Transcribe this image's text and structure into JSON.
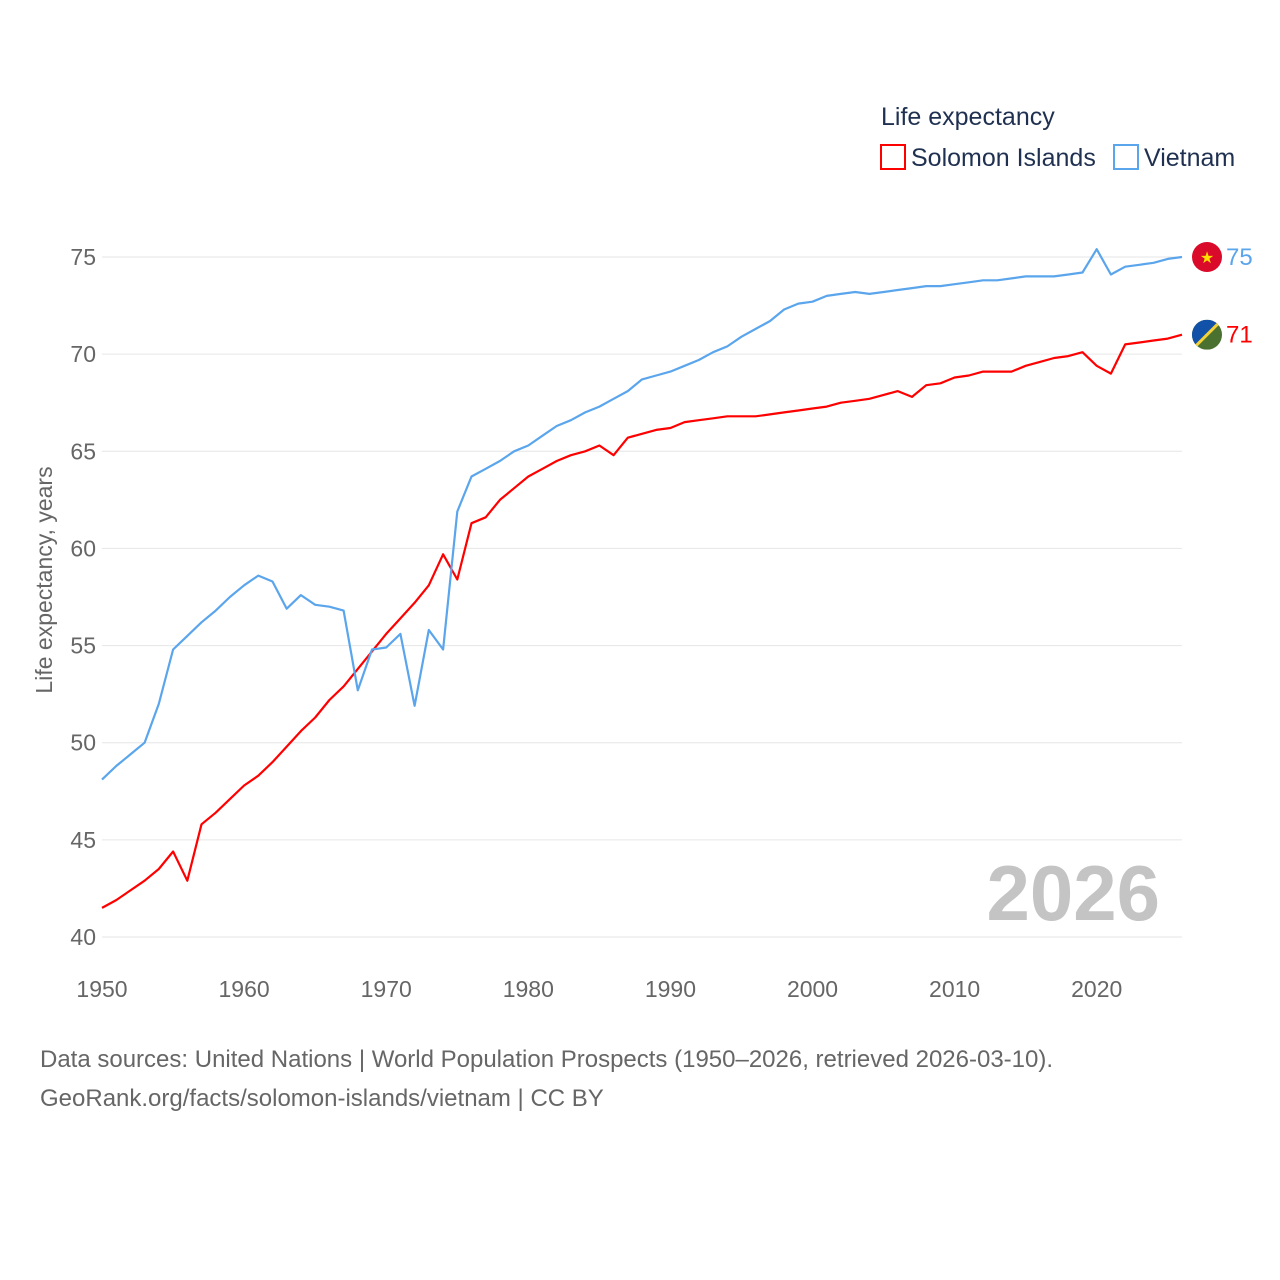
{
  "legend": {
    "title": "Life expectancy",
    "items": [
      {
        "name": "Solomon Islands",
        "color": "#ff0000"
      },
      {
        "name": "Vietnam",
        "color": "#5aa5ec"
      }
    ]
  },
  "year_watermark": "2026",
  "sources": {
    "line1": "Data sources: United Nations | World Population Prospects (1950–2026, retrieved 2026-03-10).",
    "line2": "GeoRank.org/facts/solomon-islands/vietnam | CC BY"
  },
  "chart_data": {
    "type": "line",
    "title": "Life expectancy",
    "xlabel": "",
    "ylabel": "Life expectancy, years",
    "xlim": [
      1950,
      2026
    ],
    "ylim": [
      40,
      77
    ],
    "grid": true,
    "legend_placement": "top-right",
    "xticks": [
      1950,
      1960,
      1970,
      1980,
      1990,
      2000,
      2010,
      2020
    ],
    "yticks": [
      40,
      45,
      50,
      55,
      60,
      65,
      70,
      75
    ],
    "x_start": 1950,
    "series": [
      {
        "name": "Solomon Islands",
        "color": "#ff0000",
        "end_label": "71",
        "flag": "solomon-islands",
        "values": [
          41.5,
          41.9,
          42.4,
          42.9,
          43.5,
          44.4,
          42.9,
          45.8,
          46.4,
          47.1,
          47.8,
          48.3,
          49.0,
          49.8,
          50.6,
          51.3,
          52.2,
          52.9,
          53.8,
          54.7,
          55.6,
          56.4,
          57.2,
          58.1,
          59.7,
          58.4,
          61.3,
          61.6,
          62.5,
          63.1,
          63.7,
          64.1,
          64.5,
          64.8,
          65.0,
          65.3,
          64.8,
          65.7,
          65.9,
          66.1,
          66.2,
          66.5,
          66.6,
          66.7,
          66.8,
          66.8,
          66.8,
          66.9,
          67.0,
          67.1,
          67.2,
          67.3,
          67.5,
          67.6,
          67.7,
          67.9,
          68.1,
          67.8,
          68.4,
          68.5,
          68.8,
          68.9,
          69.1,
          69.1,
          69.1,
          69.4,
          69.6,
          69.8,
          69.9,
          70.1,
          69.4,
          69.0,
          70.5,
          70.6,
          70.7,
          70.8,
          71.0
        ]
      },
      {
        "name": "Vietnam",
        "color": "#5aa5ec",
        "end_label": "75",
        "flag": "vietnam",
        "values": [
          48.1,
          48.8,
          49.4,
          50.0,
          52.0,
          54.8,
          55.5,
          56.2,
          56.8,
          57.5,
          58.1,
          58.6,
          58.3,
          56.9,
          57.6,
          57.1,
          57.0,
          56.8,
          52.7,
          54.8,
          54.9,
          55.6,
          51.9,
          55.8,
          54.8,
          61.9,
          63.7,
          64.1,
          64.5,
          65.0,
          65.3,
          65.8,
          66.3,
          66.6,
          67.0,
          67.3,
          67.7,
          68.1,
          68.7,
          68.9,
          69.1,
          69.4,
          69.7,
          70.1,
          70.4,
          70.9,
          71.3,
          71.7,
          72.3,
          72.6,
          72.7,
          73.0,
          73.1,
          73.2,
          73.1,
          73.2,
          73.3,
          73.4,
          73.5,
          73.5,
          73.6,
          73.7,
          73.8,
          73.8,
          73.9,
          74.0,
          74.0,
          74.0,
          74.1,
          74.2,
          75.4,
          74.1,
          74.5,
          74.6,
          74.7,
          74.9,
          75.0
        ]
      }
    ]
  }
}
